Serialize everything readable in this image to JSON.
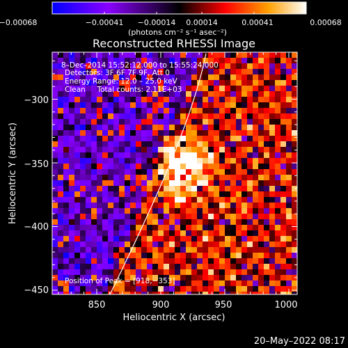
{
  "colorbar": {
    "tick_labels": [
      "−0.00068",
      "−0.00041",
      "−0.00014",
      "0.00014",
      "0.00041",
      "0.00068"
    ],
    "unit_label": "(photons cm⁻² s⁻¹ asec⁻²)"
  },
  "plot": {
    "title": "Reconstructed RHESSI Image",
    "xlabel": "Heliocentric X (arcsec)",
    "ylabel": "Heliocentric Y (arcsec)",
    "x_ticks": [
      "850",
      "900",
      "950",
      "1000"
    ],
    "y_ticks": [
      "−300",
      "−350",
      "−400",
      "−450"
    ],
    "info_lines": [
      "8–Dec–2014 15:52:12.000 to 15:55:24.000",
      "Detectors: 3F 6F 7F 9F, Att 0",
      "Energy Range: 12.0 – 25.0 keV",
      "Clean     Total counts: 2.11E+03"
    ],
    "peak_label": "Position of Peak = [918,−353]"
  },
  "footer": {
    "date": "20–May–2022 08:17"
  },
  "colors": {
    "background": "#000000",
    "foreground": "#ffffff",
    "colorbar_stops": [
      "#0000ff",
      "#8a00ff",
      "#000000",
      "#ff0000",
      "#ffa000",
      "#ffffff"
    ]
  },
  "image": {
    "x_range": [
      815,
      1005
    ],
    "y_range": [
      -455,
      -270
    ],
    "peak": [
      918,
      -353
    ],
    "limb_visible": true
  }
}
